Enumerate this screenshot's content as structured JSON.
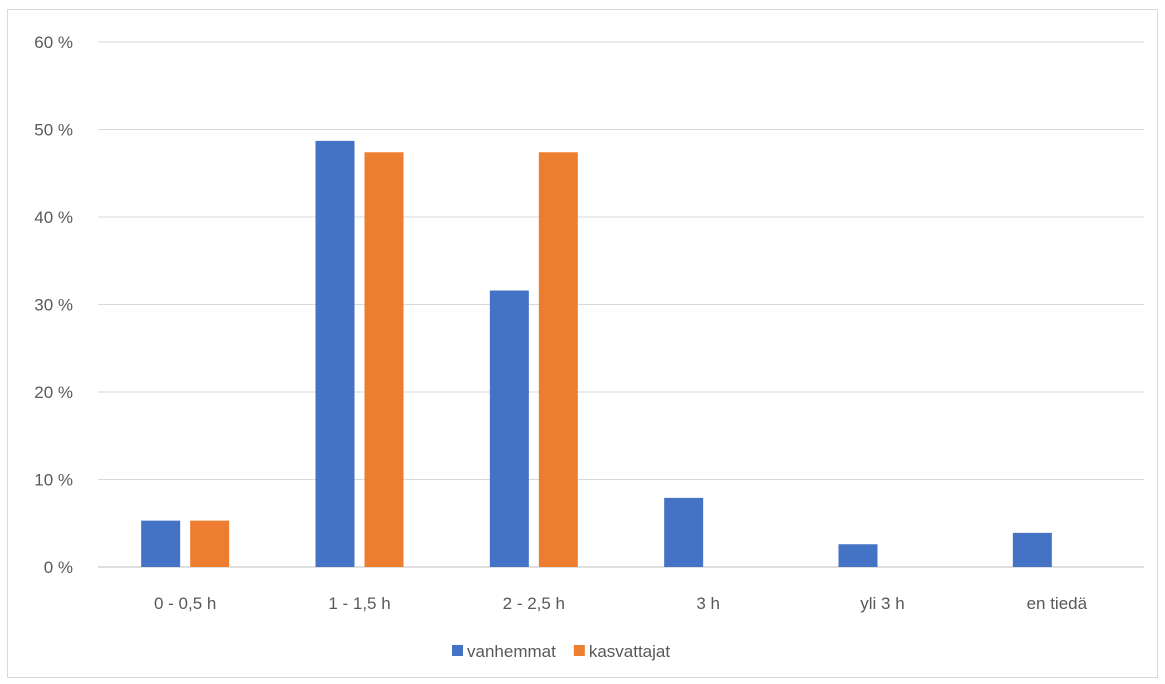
{
  "chart_data": {
    "type": "bar",
    "title": "",
    "xlabel": "",
    "ylabel": "",
    "categories": [
      "0 - 0,5 h",
      "1 - 1,5 h",
      "2 - 2,5 h",
      "3 h",
      "yli 3 h",
      "en tiedä"
    ],
    "series": [
      {
        "name": "vanhemmat",
        "color": "#4472c4",
        "values": [
          5.3,
          48.7,
          31.6,
          7.9,
          2.6,
          3.9
        ]
      },
      {
        "name": "kasvattajat",
        "color": "#ed7d31",
        "values": [
          5.3,
          47.4,
          47.4,
          0,
          0,
          0
        ]
      }
    ],
    "ylim": [
      0,
      60
    ],
    "yticks": [
      0,
      10,
      20,
      30,
      40,
      50,
      60
    ],
    "ytick_labels": [
      "0 %",
      "10 %",
      "20 %",
      "30 %",
      "40 %",
      "50 %",
      "60 %"
    ],
    "grid": true,
    "legend_position": "bottom"
  }
}
